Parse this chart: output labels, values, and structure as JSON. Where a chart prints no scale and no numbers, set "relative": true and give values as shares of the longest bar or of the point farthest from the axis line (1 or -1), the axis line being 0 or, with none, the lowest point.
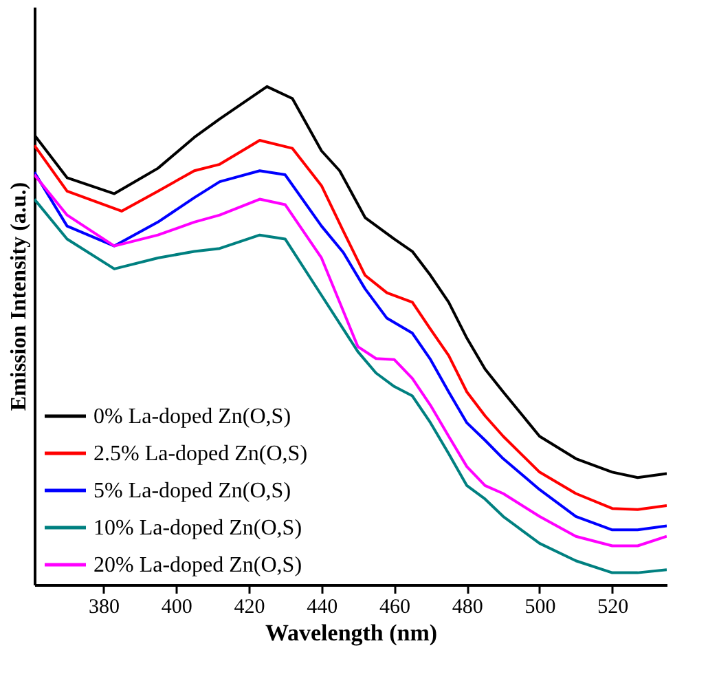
{
  "chart_data": {
    "type": "line",
    "xlabel": "Wavelength (nm)",
    "ylabel": "Emission Intensity (a.u.)",
    "relative": true,
    "xlim": [
      361,
      535
    ],
    "xticks": [
      380,
      400,
      420,
      440,
      460,
      480,
      500,
      520
    ],
    "legend": "bottom left",
    "grid": false,
    "marker": "none",
    "line_style": "solid",
    "series": [
      {
        "name": "0% La-doped Zn(O,S)",
        "color": "#000000",
        "x": [
          361,
          370,
          383,
          395,
          405,
          412,
          425,
          432,
          440,
          445,
          452,
          460,
          465,
          470,
          475,
          480,
          485,
          490,
          500,
          510,
          520,
          527,
          535
        ],
        "values": [
          0.903,
          0.817,
          0.785,
          0.836,
          0.898,
          0.935,
          1,
          0.976,
          0.871,
          0.831,
          0.737,
          0.694,
          0.669,
          0.621,
          0.567,
          0.495,
          0.433,
          0.387,
          0.298,
          0.253,
          0.226,
          0.215,
          0.223
        ]
      },
      {
        "name": "2.5% La-doped Zn(O,S)",
        "color": "#ff0000",
        "x": [
          361,
          370,
          385,
          395,
          405,
          412,
          423,
          432,
          440,
          446,
          452,
          458,
          465,
          470,
          475,
          480,
          485,
          490,
          500,
          510,
          520,
          527,
          535
        ],
        "values": [
          0.882,
          0.79,
          0.75,
          0.79,
          0.831,
          0.844,
          0.892,
          0.876,
          0.801,
          0.71,
          0.621,
          0.586,
          0.567,
          0.513,
          0.46,
          0.387,
          0.339,
          0.298,
          0.226,
          0.183,
          0.153,
          0.151,
          0.159
        ]
      },
      {
        "name": "5% La-doped Zn(O,S)",
        "color": "#0000ff",
        "x": [
          361,
          370,
          383,
          395,
          405,
          412,
          423,
          430,
          440,
          446,
          452,
          458,
          465,
          470,
          475,
          480,
          485,
          490,
          500,
          510,
          520,
          527,
          535
        ],
        "values": [
          0.828,
          0.72,
          0.68,
          0.728,
          0.777,
          0.809,
          0.831,
          0.823,
          0.72,
          0.667,
          0.594,
          0.535,
          0.505,
          0.452,
          0.387,
          0.325,
          0.29,
          0.253,
          0.191,
          0.137,
          0.11,
          0.11,
          0.118
        ]
      },
      {
        "name": "10% La-doped Zn(O,S)",
        "color": "#008080",
        "x": [
          361,
          370,
          383,
          395,
          405,
          412,
          423,
          430,
          440,
          450,
          455,
          460,
          465,
          470,
          475,
          480,
          485,
          490,
          500,
          510,
          520,
          527,
          535
        ],
        "values": [
          0.774,
          0.694,
          0.634,
          0.656,
          0.669,
          0.675,
          0.702,
          0.694,
          0.581,
          0.468,
          0.425,
          0.398,
          0.379,
          0.325,
          0.263,
          0.199,
          0.172,
          0.137,
          0.083,
          0.048,
          0.024,
          0.024,
          0.03
        ]
      },
      {
        "name": "20% La-doped Zn(O,S)",
        "color": "#ff00ff",
        "x": [
          361,
          370,
          383,
          395,
          405,
          412,
          423,
          430,
          440,
          450,
          455,
          460,
          465,
          470,
          475,
          480,
          485,
          490,
          500,
          510,
          520,
          527,
          535
        ],
        "values": [
          0.823,
          0.742,
          0.68,
          0.702,
          0.728,
          0.742,
          0.774,
          0.763,
          0.656,
          0.478,
          0.454,
          0.452,
          0.414,
          0.36,
          0.298,
          0.237,
          0.199,
          0.183,
          0.137,
          0.097,
          0.078,
          0.078,
          0.097
        ]
      }
    ]
  }
}
